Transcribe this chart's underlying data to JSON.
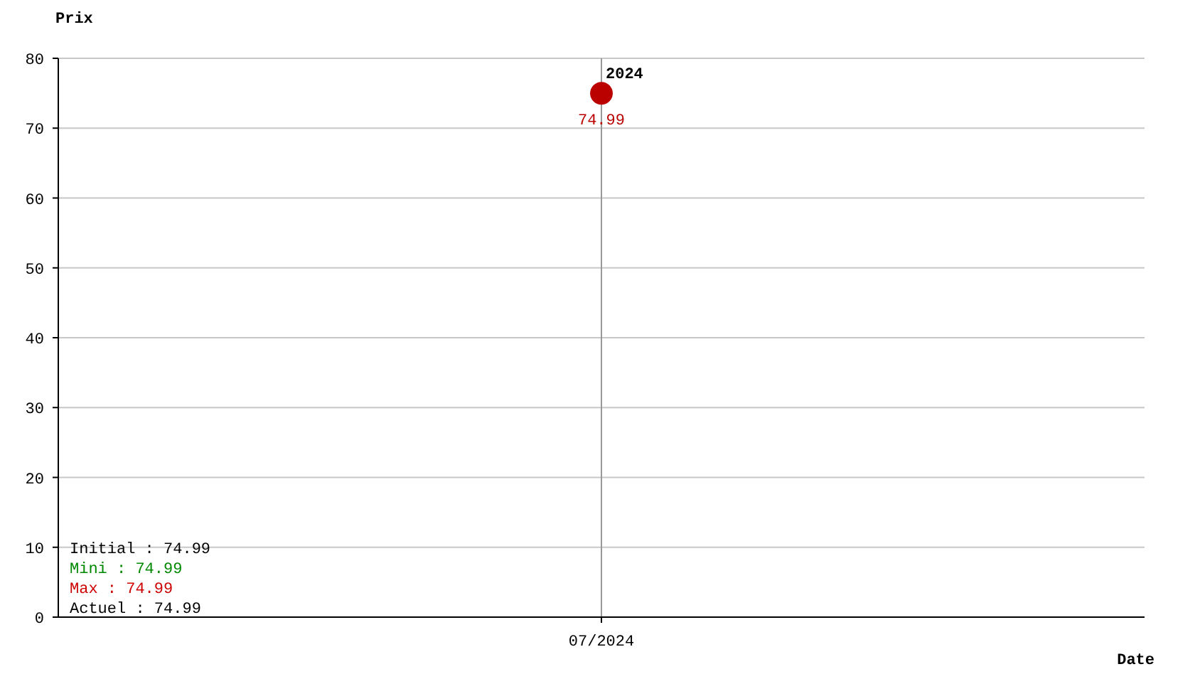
{
  "chart_data": {
    "type": "scatter",
    "xlabel": "Date",
    "ylabel": "Prix",
    "categories": [
      "07/2024"
    ],
    "series": [
      {
        "color": "#bb0000",
        "values": [
          74.99
        ]
      }
    ],
    "ylim": [
      0,
      80
    ],
    "yticks": [
      0,
      10,
      20,
      30,
      40,
      50,
      60,
      70,
      80
    ],
    "grid": "y",
    "marker": "circle",
    "data_labels": true,
    "ref_lines": [
      {
        "axis": "x",
        "value": "07/2024",
        "label": "2024",
        "color": "#999999"
      }
    ],
    "annotations": [
      "Initial : 74.99",
      "Mini : 74.99",
      "Max : 74.99",
      "Actuel : 74.99"
    ]
  }
}
